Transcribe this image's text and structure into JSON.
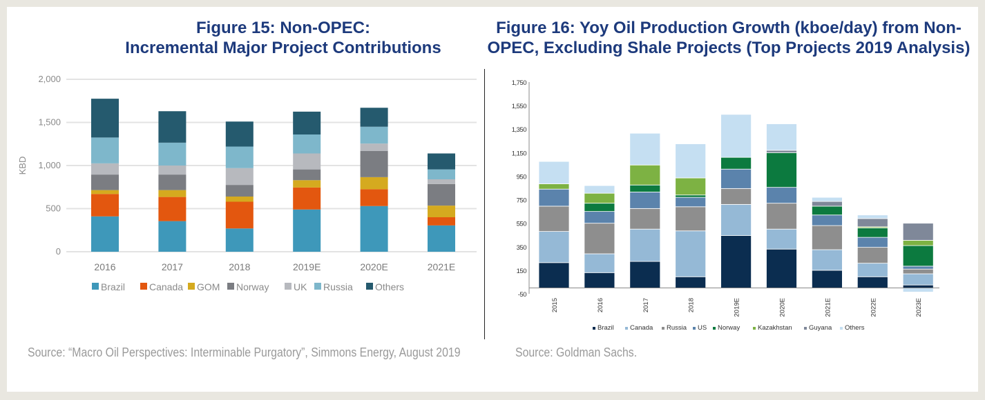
{
  "chart_data": [
    {
      "type": "bar",
      "stacked": true,
      "title": [
        "Figure 15: Non-OPEC:",
        "Incremental Major Project Contributions"
      ],
      "xlabel": "",
      "ylabel": "KBD",
      "ylim": [
        0,
        2000
      ],
      "yticks": [
        0,
        500,
        1000,
        1500,
        2000
      ],
      "ytick_labels": [
        "0",
        "500",
        "1,000",
        "1,500",
        "2,000"
      ],
      "grid": true,
      "legend": "bottom",
      "categories": [
        "2016",
        "2017",
        "2018",
        "2019E",
        "2020E",
        "2021E"
      ],
      "series": [
        {
          "name": "Brazil",
          "color": "#3e98ba",
          "values": [
            410,
            355,
            270,
            490,
            530,
            305
          ]
        },
        {
          "name": "Canada",
          "color": "#e3570f",
          "values": [
            260,
            280,
            310,
            255,
            195,
            95
          ]
        },
        {
          "name": "GOM",
          "color": "#d5aa1f",
          "values": [
            45,
            80,
            60,
            85,
            140,
            135
          ]
        },
        {
          "name": "Norway",
          "color": "#7b7d82",
          "values": [
            180,
            180,
            135,
            125,
            305,
            250
          ]
        },
        {
          "name": "UK",
          "color": "#b7b9be",
          "values": [
            130,
            105,
            195,
            185,
            85,
            55
          ]
        },
        {
          "name": "Russia",
          "color": "#7eb7cb",
          "values": [
            300,
            265,
            250,
            220,
            195,
            115
          ]
        },
        {
          "name": "Others",
          "color": "#255a6e",
          "values": [
            450,
            365,
            290,
            265,
            220,
            185
          ]
        }
      ],
      "source": "Source: “Macro Oil Perspectives: Interminable Purgatory”, Simmons Energy, August 2019"
    },
    {
      "type": "bar",
      "stacked": true,
      "title": [
        "Figure 16: Yoy Oil Production Growth (kboe/day) from Non-",
        "OPEC, Excluding Shale Projects (Top Projects 2019 Analysis)"
      ],
      "xlabel": "",
      "ylabel": "",
      "ylim": [
        -50,
        1750
      ],
      "yticks": [
        -50,
        150,
        350,
        550,
        750,
        950,
        1150,
        1350,
        1550,
        1750
      ],
      "ytick_labels": [
        "-50",
        "150",
        "350",
        "550",
        "750",
        "950",
        "1,150",
        "1,350",
        "1,550",
        "1,750"
      ],
      "grid": false,
      "legend": "bottom",
      "categories": [
        "2015",
        "2016",
        "2017",
        "2018",
        "2019E",
        "2020E",
        "2021E",
        "2022E",
        "2023E"
      ],
      "series": [
        {
          "name": "Brazil",
          "color": "#0b2d50",
          "values": [
            215,
            130,
            225,
            95,
            445,
            330,
            150,
            95,
            25
          ]
        },
        {
          "name": "Canada",
          "color": "#95b9d6",
          "values": [
            265,
            160,
            275,
            390,
            265,
            170,
            175,
            115,
            95
          ]
        },
        {
          "name": "Russia",
          "color": "#8e8e8e",
          "values": [
            215,
            260,
            175,
            205,
            135,
            220,
            205,
            135,
            40
          ]
        },
        {
          "name": "US",
          "color": "#5b83ac",
          "values": [
            145,
            100,
            140,
            80,
            165,
            135,
            90,
            85,
            25
          ]
        },
        {
          "name": "Norway",
          "color": "#0c7a3f",
          "values": [
            0,
            70,
            60,
            20,
            100,
            295,
            75,
            80,
            175
          ]
        },
        {
          "name": "Kazakhstan",
          "color": "#7db243",
          "values": [
            45,
            85,
            170,
            145,
            0,
            0,
            0,
            10,
            45
          ]
        },
        {
          "name": "Guyana",
          "color": "#7f8899",
          "values": [
            0,
            0,
            0,
            0,
            0,
            20,
            40,
            70,
            145
          ]
        },
        {
          "name": "Others",
          "color": "#c5dff2",
          "values": [
            190,
            65,
            270,
            290,
            365,
            225,
            35,
            30,
            -35
          ]
        }
      ],
      "source": "Source: Goldman Sachs."
    }
  ]
}
